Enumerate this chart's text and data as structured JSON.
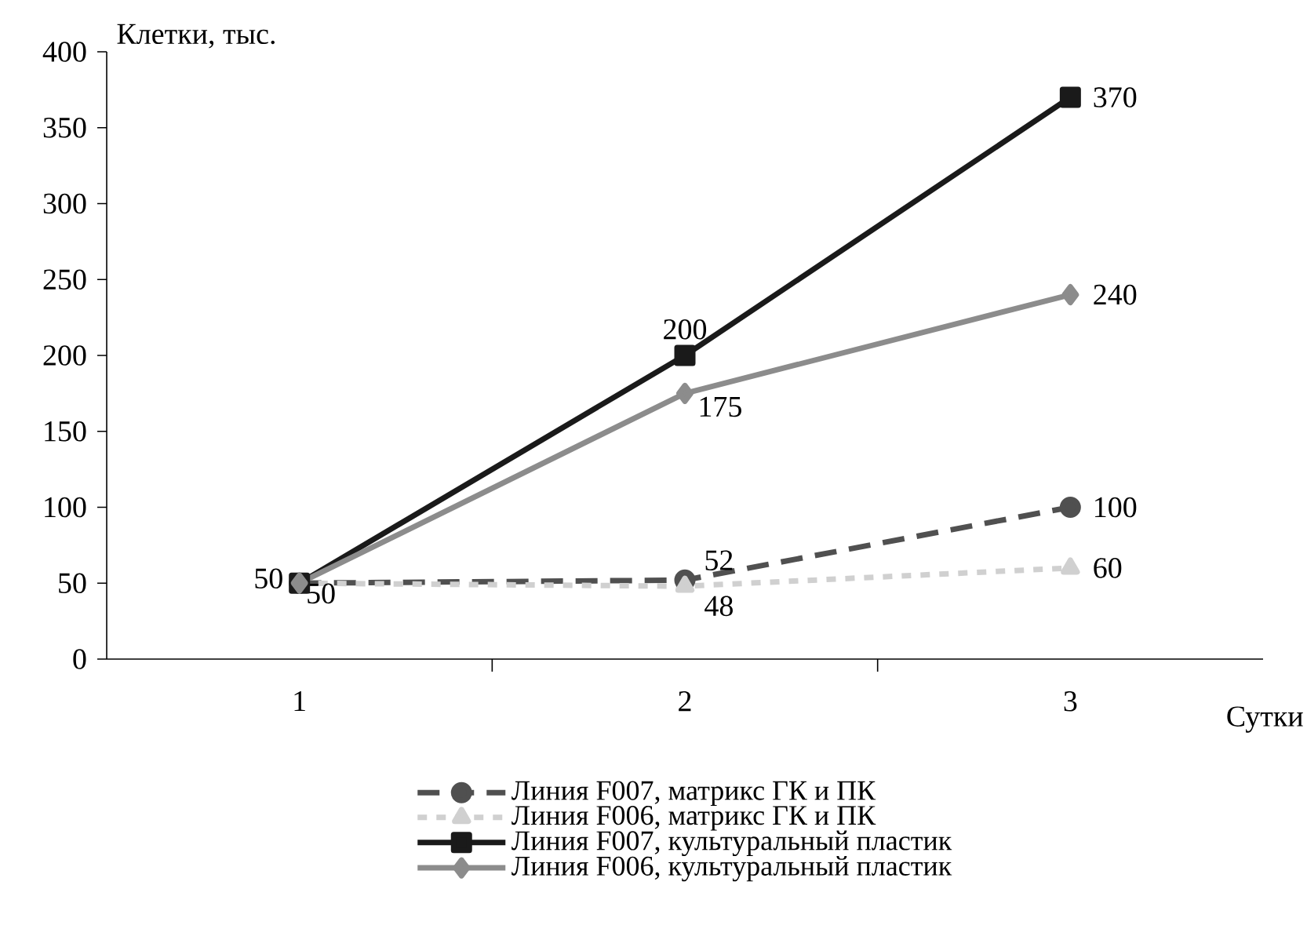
{
  "chart_data": {
    "type": "line",
    "xlabel": "Сутки",
    "ylabel": "Клетки, тыс.",
    "categories": [
      "1",
      "2",
      "3"
    ],
    "ylim": [
      0,
      400
    ],
    "yticks": [
      0,
      50,
      100,
      150,
      200,
      250,
      300,
      350,
      400
    ],
    "grid": false,
    "legend": "bottom",
    "series": [
      {
        "name": "Линия F007, матрикс ГК и ПК",
        "color": "#505050",
        "marker": "circle",
        "line_style": "dashed",
        "values": [
          50,
          52,
          100
        ],
        "value_labels": [
          "50",
          "52",
          "100"
        ]
      },
      {
        "name": "Линия F006, матрикс ГК и ПК",
        "color": "#d0d0d0",
        "marker": "triangle",
        "line_style": "dotted",
        "values": [
          50,
          48,
          60
        ],
        "value_labels": [
          "50",
          "48",
          "60"
        ]
      },
      {
        "name": "Линия F007, культуральный пластик",
        "color": "#1a1a1a",
        "marker": "square",
        "line_style": "solid",
        "values": [
          50,
          200,
          370
        ],
        "value_labels": [
          null,
          "200",
          "370"
        ]
      },
      {
        "name": "Линия F006, культуральный пластик",
        "color": "#8c8c8c",
        "marker": "diamond",
        "line_style": "solid",
        "values": [
          50,
          175,
          240
        ],
        "value_labels": [
          null,
          "175",
          "240"
        ]
      }
    ]
  }
}
